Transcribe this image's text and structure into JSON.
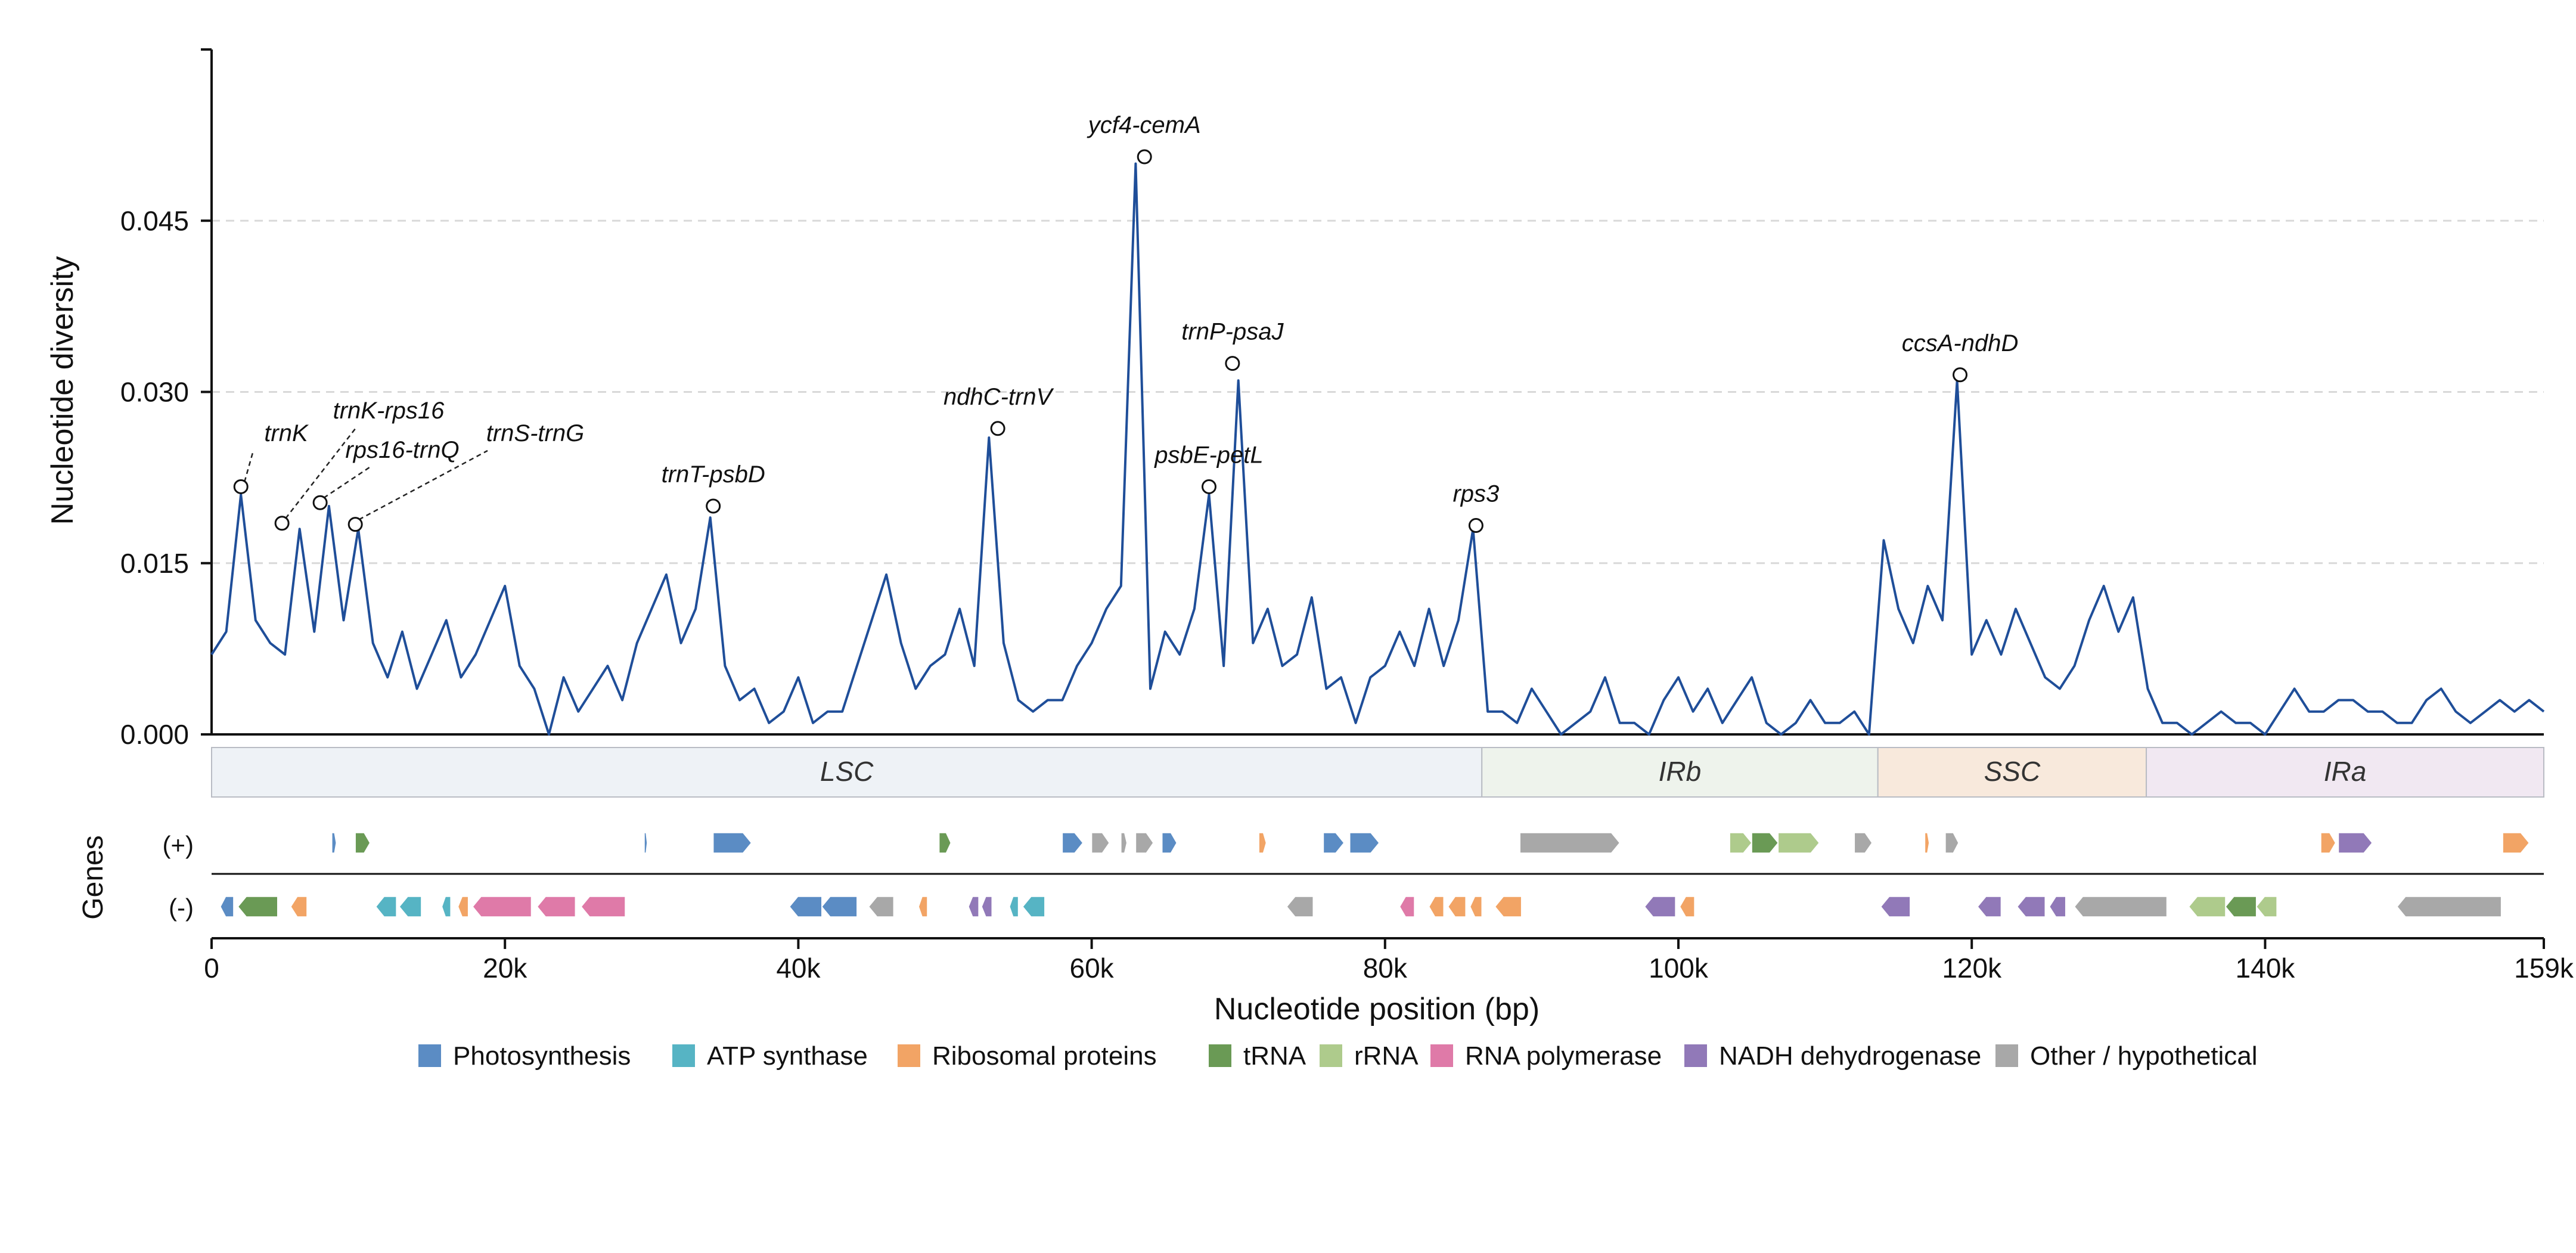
{
  "chart_data": {
    "type": "line",
    "ylabel": "Nucleotide diversity",
    "xlabel": "Nucleotide position (bp)",
    "xlim": [
      0,
      159000
    ],
    "ylim": [
      0,
      0.06
    ],
    "yticks": [
      0.0,
      0.015,
      0.03,
      0.045
    ],
    "ytick_labels": [
      "0.000",
      "0.015",
      "0.030",
      "0.045"
    ],
    "xticks": [
      0,
      20000,
      40000,
      60000,
      80000,
      100000,
      120000,
      140000,
      159000
    ],
    "xtick_labels": [
      "0",
      "20k",
      "40k",
      "60k",
      "80k",
      "100k",
      "120k",
      "140k",
      "159k"
    ],
    "grid": "horizontal dashed",
    "series_color": "#1f4e99",
    "diversity": {
      "x": [
        0,
        1000,
        2000,
        3000,
        4000,
        5000,
        6000,
        7000,
        8000,
        9000,
        10000,
        11000,
        12000,
        13000,
        14000,
        15000,
        16000,
        17000,
        18000,
        19000,
        20000,
        21000,
        22000,
        23000,
        24000,
        25000,
        26000,
        27000,
        28000,
        29000,
        30000,
        31000,
        32000,
        33000,
        34000,
        35000,
        36000,
        37000,
        38000,
        39000,
        40000,
        41000,
        42000,
        43000,
        44000,
        45000,
        46000,
        47000,
        48000,
        49000,
        50000,
        51000,
        52000,
        53000,
        54000,
        55000,
        56000,
        57000,
        58000,
        59000,
        60000,
        61000,
        62000,
        63000,
        64000,
        65000,
        66000,
        67000,
        68000,
        69000,
        70000,
        71000,
        72000,
        73000,
        74000,
        75000,
        76000,
        77000,
        78000,
        79000,
        80000,
        81000,
        82000,
        83000,
        84000,
        85000,
        86000,
        87000,
        88000,
        89000,
        90000,
        91000,
        92000,
        93000,
        94000,
        95000,
        96000,
        97000,
        98000,
        99000,
        100000,
        101000,
        102000,
        103000,
        104000,
        105000,
        106000,
        107000,
        108000,
        109000,
        110000,
        111000,
        112000,
        113000,
        114000,
        115000,
        116000,
        117000,
        118000,
        119000,
        120000,
        121000,
        122000,
        123000,
        124000,
        125000,
        126000,
        127000,
        128000,
        129000,
        130000,
        131000,
        132000,
        133000,
        134000,
        135000,
        136000,
        137000,
        138000,
        139000,
        140000,
        141000,
        142000,
        143000,
        144000,
        145000,
        146000,
        147000,
        148000,
        149000,
        150000,
        151000,
        152000,
        153000,
        154000,
        155000,
        156000,
        157000,
        158000,
        159000
      ],
      "y": [
        0.007,
        0.009,
        0.021,
        0.01,
        0.008,
        0.007,
        0.018,
        0.009,
        0.02,
        0.01,
        0.018,
        0.008,
        0.005,
        0.009,
        0.004,
        0.007,
        0.01,
        0.005,
        0.007,
        0.01,
        0.013,
        0.006,
        0.004,
        0.0,
        0.005,
        0.002,
        0.004,
        0.006,
        0.003,
        0.008,
        0.011,
        0.014,
        0.008,
        0.011,
        0.019,
        0.006,
        0.003,
        0.004,
        0.001,
        0.002,
        0.005,
        0.001,
        0.002,
        0.002,
        0.006,
        0.01,
        0.014,
        0.008,
        0.004,
        0.006,
        0.007,
        0.011,
        0.006,
        0.026,
        0.008,
        0.003,
        0.002,
        0.003,
        0.003,
        0.006,
        0.008,
        0.011,
        0.013,
        0.05,
        0.004,
        0.009,
        0.007,
        0.011,
        0.021,
        0.006,
        0.031,
        0.008,
        0.011,
        0.006,
        0.007,
        0.012,
        0.004,
        0.005,
        0.001,
        0.005,
        0.006,
        0.009,
        0.006,
        0.011,
        0.006,
        0.01,
        0.018,
        0.002,
        0.002,
        0.001,
        0.004,
        0.002,
        0.0,
        0.001,
        0.002,
        0.005,
        0.001,
        0.001,
        0.0,
        0.003,
        0.005,
        0.002,
        0.004,
        0.001,
        0.003,
        0.005,
        0.001,
        0.0,
        0.001,
        0.003,
        0.001,
        0.001,
        0.002,
        0.0,
        0.017,
        0.011,
        0.008,
        0.013,
        0.01,
        0.031,
        0.007,
        0.01,
        0.007,
        0.011,
        0.008,
        0.005,
        0.004,
        0.006,
        0.01,
        0.013,
        0.009,
        0.012,
        0.004,
        0.001,
        0.001,
        0.0,
        0.001,
        0.002,
        0.001,
        0.001,
        0.0,
        0.002,
        0.004,
        0.002,
        0.002,
        0.003,
        0.003,
        0.002,
        0.002,
        0.001,
        0.001,
        0.003,
        0.004,
        0.002,
        0.001,
        0.002,
        0.003,
        0.002,
        0.003,
        0.002
      ]
    },
    "peaks": [
      {
        "label": "trnK",
        "x": 2000,
        "y": 0.0217,
        "callout": true
      },
      {
        "label": "trnK-rps16",
        "x": 4800,
        "y": 0.0185,
        "callout": true
      },
      {
        "label": "rps16-trnQ",
        "x": 7400,
        "y": 0.0203,
        "callout": true
      },
      {
        "label": "trnS-trnG",
        "x": 9800,
        "y": 0.0184,
        "callout": true
      },
      {
        "label": "trnT-psbD",
        "x": 34200,
        "y": 0.02
      },
      {
        "label": "ndhC-trnV",
        "x": 53600,
        "y": 0.0268
      },
      {
        "label": "ycf4-cemA",
        "x": 63600,
        "y": 0.0506
      },
      {
        "label": "psbE-petL",
        "x": 68000,
        "y": 0.0217
      },
      {
        "label": "trnP-psaJ",
        "x": 69600,
        "y": 0.0325
      },
      {
        "label": "rps3",
        "x": 86200,
        "y": 0.0183
      },
      {
        "label": "ccsA-ndhD",
        "x": 119200,
        "y": 0.0315
      }
    ],
    "regions": [
      {
        "label": "LSC",
        "start": 0,
        "end": 86600,
        "color": "#eef2f6"
      },
      {
        "label": "IRb",
        "start": 86600,
        "end": 113600,
        "color": "#eef3ec"
      },
      {
        "label": "SSC",
        "start": 113600,
        "end": 131900,
        "color": "#f8e9dc"
      },
      {
        "label": "IRa",
        "start": 131900,
        "end": 159000,
        "color": "#f1e8f2"
      }
    ],
    "gene_track": {
      "label": "Genes",
      "plus_label": "(+)",
      "minus_label": "(-)",
      "plus": [
        {
          "start": 8200,
          "end": 8500,
          "cat": "Photosynthesis"
        },
        {
          "start": 9800,
          "end": 10800,
          "cat": "tRNA"
        },
        {
          "start": 29500,
          "end": 29700,
          "cat": "Photosynthesis"
        },
        {
          "start": 34200,
          "end": 36800,
          "cat": "Photosynthesis"
        },
        {
          "start": 49600,
          "end": 50400,
          "cat": "tRNA"
        },
        {
          "start": 58000,
          "end": 59400,
          "cat": "Photosynthesis"
        },
        {
          "start": 60000,
          "end": 61200,
          "cat": "Other / hypothetical"
        },
        {
          "start": 62000,
          "end": 62400,
          "cat": "Other / hypothetical"
        },
        {
          "start": 63000,
          "end": 64200,
          "cat": "Other / hypothetical"
        },
        {
          "start": 64800,
          "end": 65800,
          "cat": "Photosynthesis"
        },
        {
          "start": 71400,
          "end": 71900,
          "cat": "Ribosomal proteins"
        },
        {
          "start": 75800,
          "end": 77200,
          "cat": "Photosynthesis"
        },
        {
          "start": 77600,
          "end": 79600,
          "cat": "Photosynthesis"
        },
        {
          "start": 89200,
          "end": 96000,
          "cat": "Other / hypothetical"
        },
        {
          "start": 103500,
          "end": 105000,
          "cat": "rRNA"
        },
        {
          "start": 105000,
          "end": 106800,
          "cat": "tRNA"
        },
        {
          "start": 106800,
          "end": 109600,
          "cat": "rRNA"
        },
        {
          "start": 112000,
          "end": 113200,
          "cat": "Other / hypothetical"
        },
        {
          "start": 116800,
          "end": 117100,
          "cat": "Ribosomal proteins"
        },
        {
          "start": 118200,
          "end": 119100,
          "cat": "Other / hypothetical"
        },
        {
          "start": 143800,
          "end": 144800,
          "cat": "Ribosomal proteins"
        },
        {
          "start": 145000,
          "end": 147300,
          "cat": "NADH dehydrogenase"
        },
        {
          "start": 156200,
          "end": 158000,
          "cat": "Ribosomal proteins"
        }
      ],
      "minus": [
        {
          "start": 600,
          "end": 1500,
          "cat": "Photosynthesis"
        },
        {
          "start": 1800,
          "end": 4500,
          "cat": "tRNA"
        },
        {
          "start": 5400,
          "end": 6500,
          "cat": "Ribosomal proteins"
        },
        {
          "start": 11200,
          "end": 12600,
          "cat": "ATP synthase"
        },
        {
          "start": 12800,
          "end": 14300,
          "cat": "ATP synthase"
        },
        {
          "start": 15700,
          "end": 16300,
          "cat": "ATP synthase"
        },
        {
          "start": 16800,
          "end": 17500,
          "cat": "Ribosomal proteins"
        },
        {
          "start": 17800,
          "end": 21800,
          "cat": "RNA polymerase"
        },
        {
          "start": 22200,
          "end": 24800,
          "cat": "RNA polymerase"
        },
        {
          "start": 25200,
          "end": 28200,
          "cat": "RNA polymerase"
        },
        {
          "start": 39400,
          "end": 41600,
          "cat": "Photosynthesis"
        },
        {
          "start": 41600,
          "end": 44000,
          "cat": "Photosynthesis"
        },
        {
          "start": 44800,
          "end": 46500,
          "cat": "Other / hypothetical"
        },
        {
          "start": 48200,
          "end": 48800,
          "cat": "Ribosomal proteins"
        },
        {
          "start": 51600,
          "end": 52300,
          "cat": "NADH dehydrogenase"
        },
        {
          "start": 52500,
          "end": 53200,
          "cat": "NADH dehydrogenase"
        },
        {
          "start": 54400,
          "end": 55000,
          "cat": "ATP synthase"
        },
        {
          "start": 55300,
          "end": 56800,
          "cat": "ATP synthase"
        },
        {
          "start": 73300,
          "end": 75100,
          "cat": "Other / hypothetical"
        },
        {
          "start": 81000,
          "end": 82000,
          "cat": "RNA polymerase"
        },
        {
          "start": 83000,
          "end": 84000,
          "cat": "Ribosomal proteins"
        },
        {
          "start": 84300,
          "end": 85500,
          "cat": "Ribosomal proteins"
        },
        {
          "start": 85800,
          "end": 86600,
          "cat": "Ribosomal proteins"
        },
        {
          "start": 87500,
          "end": 89300,
          "cat": "Ribosomal proteins"
        },
        {
          "start": 97700,
          "end": 99800,
          "cat": "NADH dehydrogenase"
        },
        {
          "start": 100100,
          "end": 101100,
          "cat": "Ribosomal proteins"
        },
        {
          "start": 113800,
          "end": 115800,
          "cat": "NADH dehydrogenase"
        },
        {
          "start": 120400,
          "end": 122000,
          "cat": "NADH dehydrogenase"
        },
        {
          "start": 123100,
          "end": 125000,
          "cat": "NADH dehydrogenase"
        },
        {
          "start": 125300,
          "end": 126400,
          "cat": "NADH dehydrogenase"
        },
        {
          "start": 127000,
          "end": 133300,
          "cat": "Other / hypothetical"
        },
        {
          "start": 134800,
          "end": 137300,
          "cat": "rRNA"
        },
        {
          "start": 137300,
          "end": 139400,
          "cat": "tRNA"
        },
        {
          "start": 139400,
          "end": 140800,
          "cat": "rRNA"
        },
        {
          "start": 149000,
          "end": 156100,
          "cat": "Other / hypothetical"
        }
      ]
    },
    "legend": {
      "placement": "bottom-center",
      "items": [
        {
          "name": "Photosynthesis",
          "color": "#5b8cc4"
        },
        {
          "name": "ATP synthase",
          "color": "#56b4c4"
        },
        {
          "name": "Ribosomal proteins",
          "color": "#f2a465"
        },
        {
          "name": "tRNA",
          "color": "#6a9a55"
        },
        {
          "name": "rRNA",
          "color": "#aecb8c"
        },
        {
          "name": "RNA polymerase",
          "color": "#df7aa8"
        },
        {
          "name": "NADH dehydrogenase",
          "color": "#9179b8"
        },
        {
          "name": "Other / hypothetical",
          "color": "#a8a8a8"
        }
      ]
    }
  }
}
